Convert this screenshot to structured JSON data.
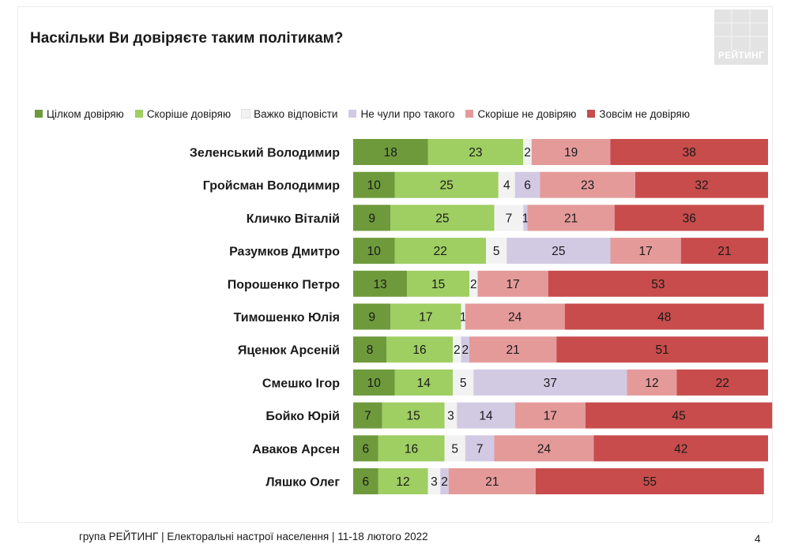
{
  "brand": {
    "logo_text": "РЕЙТИНГ"
  },
  "footer": {
    "text": "група РЕЙТИНГ | Електоральні настрої населення | 11-18 лютого 2022",
    "page": "4"
  },
  "chart_data": {
    "type": "bar",
    "orientation": "horizontal",
    "stacked": true,
    "title": "Наскільки Ви довіряєте таким політикам?",
    "categories": [
      "Зеленський Володимир",
      "Гройсман Володимир",
      "Кличко Віталій",
      "Разумков Дмитро",
      "Порошенко Петро",
      "Тимошенко Юлія",
      "Яценюк Арсеній",
      "Смешко Ігор",
      "Бойко Юрій",
      "Аваков Арсен",
      "Ляшко Олег"
    ],
    "series": [
      {
        "name": "Цілком довіряю",
        "color": "#6e9a3c",
        "values": [
          18,
          10,
          9,
          10,
          13,
          9,
          8,
          10,
          7,
          6,
          6
        ]
      },
      {
        "name": "Скоріше довіряю",
        "color": "#9fce63",
        "values": [
          23,
          25,
          25,
          22,
          15,
          17,
          16,
          14,
          15,
          16,
          12
        ]
      },
      {
        "name": "Важко відповісти",
        "color": "#f2f2f2",
        "values": [
          2,
          4,
          7,
          5,
          2,
          1,
          2,
          5,
          3,
          5,
          3
        ]
      },
      {
        "name": "Не чули про такого",
        "color": "#d2cae3",
        "values": [
          0,
          6,
          1,
          25,
          0,
          0,
          2,
          37,
          14,
          7,
          2
        ]
      },
      {
        "name": "Скоріше не довіряю",
        "color": "#e59a9a",
        "values": [
          19,
          23,
          21,
          17,
          17,
          24,
          21,
          12,
          17,
          24,
          21
        ]
      },
      {
        "name": "Зовсім не довіряю",
        "color": "#c84c4c",
        "values": [
          38,
          32,
          36,
          21,
          53,
          48,
          51,
          22,
          45,
          42,
          55
        ]
      }
    ],
    "xlim": [
      0,
      100
    ],
    "grid": false,
    "legend": "top"
  }
}
